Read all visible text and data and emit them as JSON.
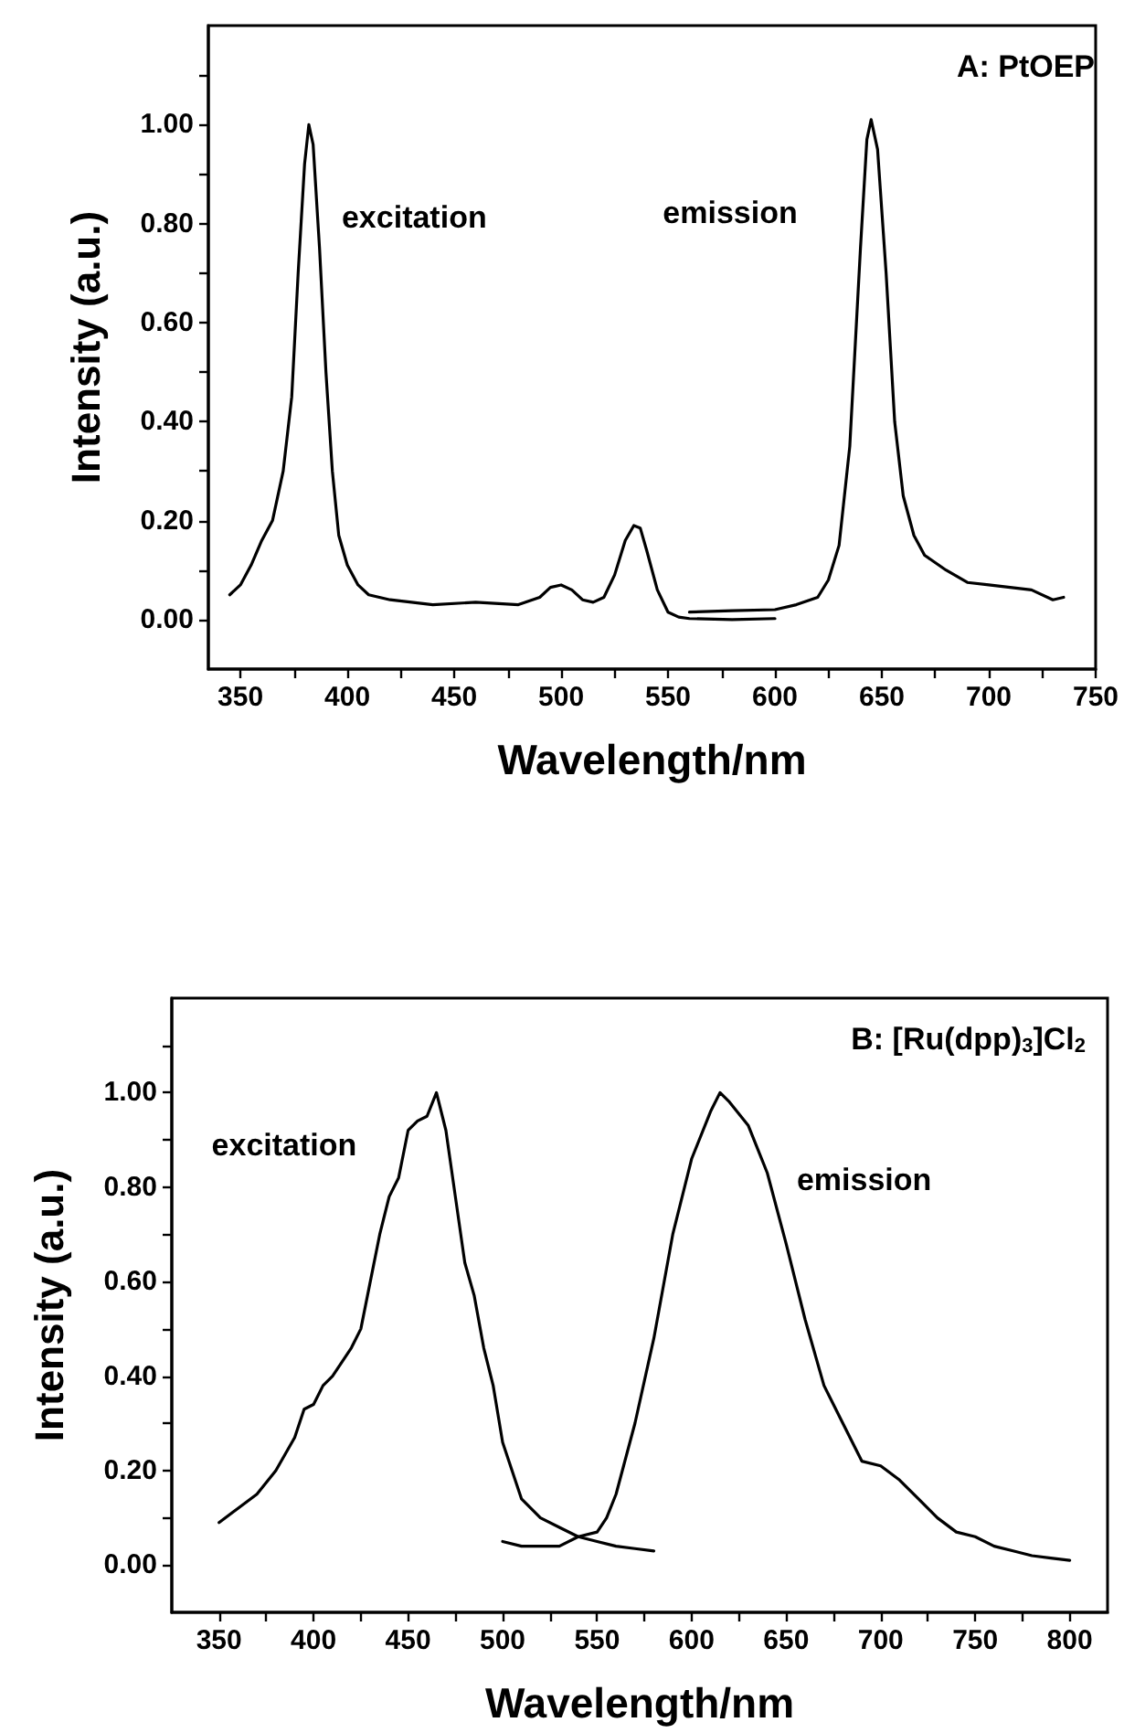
{
  "chart_data": [
    {
      "type": "line",
      "title": "A: PtOEP",
      "xlabel": "Wavelength/nm",
      "ylabel": "Intensity (a.u.)",
      "xlim": [
        335,
        750
      ],
      "ylim": [
        -0.1,
        1.2
      ],
      "xticks": [
        350,
        {
          "value": 375,
          "label": null
        },
        400,
        {
          "value": 425,
          "label": null
        },
        450,
        {
          "value": 475,
          "label": null
        },
        500,
        {
          "value": 525,
          "label": null
        },
        550,
        {
          "value": 575,
          "label": null
        },
        600,
        {
          "value": 625,
          "label": null
        },
        650,
        {
          "value": 675,
          "label": null
        },
        700,
        {
          "value": 725,
          "label": null
        },
        750
      ],
      "yticks": [
        {
          "value": 0,
          "label": "0.00"
        },
        {
          "value": 0.1,
          "label": null
        },
        {
          "value": 0.2,
          "label": "0.20"
        },
        {
          "value": 0.3,
          "label": null
        },
        {
          "value": 0.4,
          "label": "0.40"
        },
        {
          "value": 0.5,
          "label": null
        },
        {
          "value": 0.6,
          "label": "0.60"
        },
        {
          "value": 0.7,
          "label": null
        },
        {
          "value": 0.8,
          "label": "0.80"
        },
        {
          "value": 0.9,
          "label": null
        },
        {
          "value": 1,
          "label": "1.00"
        },
        {
          "value": 1.1,
          "label": null
        }
      ],
      "grid": false,
      "legend": false,
      "marker": "none",
      "line_style": "solid",
      "series": [
        {
          "name": "excitation",
          "color": "#000000",
          "x": [
            345,
            350,
            355,
            360,
            365,
            370,
            374,
            377,
            380,
            382,
            384,
            387,
            390,
            393,
            396,
            400,
            405,
            410,
            420,
            440,
            460,
            480,
            490,
            495,
            500,
            505,
            510,
            515,
            520,
            525,
            530,
            534,
            537,
            540,
            545,
            550,
            555,
            560,
            580,
            600
          ],
          "values": [
            0.05,
            0.07,
            0.11,
            0.16,
            0.2,
            0.3,
            0.45,
            0.7,
            0.92,
            1.0,
            0.96,
            0.75,
            0.5,
            0.3,
            0.17,
            0.11,
            0.07,
            0.05,
            0.04,
            0.03,
            0.035,
            0.03,
            0.045,
            0.065,
            0.07,
            0.06,
            0.04,
            0.035,
            0.045,
            0.09,
            0.16,
            0.19,
            0.185,
            0.14,
            0.06,
            0.015,
            0.005,
            0.002,
            0.0,
            0.002
          ]
        },
        {
          "name": "emission",
          "color": "#000000",
          "x": [
            560,
            580,
            600,
            610,
            620,
            625,
            630,
            635,
            640,
            643,
            645,
            648,
            652,
            656,
            660,
            665,
            670,
            680,
            690,
            700,
            710,
            720,
            730,
            735
          ],
          "values": [
            0.015,
            0.018,
            0.02,
            0.03,
            0.045,
            0.08,
            0.15,
            0.35,
            0.75,
            0.97,
            1.01,
            0.95,
            0.7,
            0.4,
            0.25,
            0.17,
            0.13,
            0.1,
            0.075,
            0.07,
            0.065,
            0.06,
            0.04,
            0.045
          ]
        }
      ]
    },
    {
      "type": "line",
      "title": "B: [Ru(dpp)$_{3}$]Cl$_{2}$",
      "xlabel": "Wavelength/nm",
      "ylabel": "Intensity (a.u.)",
      "xlim": [
        325,
        820
      ],
      "ylim": [
        -0.1,
        1.2
      ],
      "xticks": [
        350,
        {
          "value": 375,
          "label": null
        },
        400,
        {
          "value": 425,
          "label": null
        },
        450,
        {
          "value": 475,
          "label": null
        },
        500,
        {
          "value": 525,
          "label": null
        },
        550,
        {
          "value": 575,
          "label": null
        },
        600,
        {
          "value": 625,
          "label": null
        },
        650,
        {
          "value": 675,
          "label": null
        },
        700,
        {
          "value": 725,
          "label": null
        },
        750,
        {
          "value": 775,
          "label": null
        },
        800
      ],
      "yticks": [
        {
          "value": 0,
          "label": "0.00"
        },
        {
          "value": 0.1,
          "label": null
        },
        {
          "value": 0.2,
          "label": "0.20"
        },
        {
          "value": 0.3,
          "label": null
        },
        {
          "value": 0.4,
          "label": "0.40"
        },
        {
          "value": 0.5,
          "label": null
        },
        {
          "value": 0.6,
          "label": "0.60"
        },
        {
          "value": 0.7,
          "label": null
        },
        {
          "value": 0.8,
          "label": "0.80"
        },
        {
          "value": 0.9,
          "label": null
        },
        {
          "value": 1,
          "label": "1.00"
        },
        {
          "value": 1.1,
          "label": null
        }
      ],
      "grid": false,
      "legend": false,
      "marker": "none",
      "line_style": "solid",
      "series": [
        {
          "name": "excitation",
          "color": "#000000",
          "x": [
            350,
            360,
            370,
            380,
            390,
            395,
            400,
            405,
            410,
            420,
            425,
            430,
            435,
            440,
            445,
            450,
            455,
            460,
            465,
            470,
            475,
            480,
            485,
            490,
            495,
            500,
            505,
            510,
            520,
            530,
            540,
            550,
            560,
            570,
            580
          ],
          "values": [
            0.09,
            0.12,
            0.15,
            0.2,
            0.27,
            0.33,
            0.34,
            0.38,
            0.4,
            0.46,
            0.5,
            0.6,
            0.7,
            0.78,
            0.82,
            0.92,
            0.94,
            0.95,
            1.0,
            0.92,
            0.78,
            0.64,
            0.57,
            0.46,
            0.38,
            0.26,
            0.2,
            0.14,
            0.1,
            0.08,
            0.06,
            0.05,
            0.04,
            0.035,
            0.03
          ]
        },
        {
          "name": "emission",
          "color": "#000000",
          "x": [
            500,
            510,
            520,
            530,
            540,
            550,
            555,
            560,
            570,
            580,
            590,
            600,
            610,
            615,
            620,
            630,
            640,
            650,
            660,
            670,
            680,
            690,
            700,
            710,
            720,
            730,
            740,
            750,
            760,
            770,
            780,
            790,
            800
          ],
          "values": [
            0.05,
            0.04,
            0.04,
            0.04,
            0.06,
            0.07,
            0.1,
            0.15,
            0.3,
            0.48,
            0.7,
            0.86,
            0.96,
            1.0,
            0.98,
            0.93,
            0.83,
            0.68,
            0.52,
            0.38,
            0.3,
            0.22,
            0.21,
            0.18,
            0.14,
            0.1,
            0.07,
            0.06,
            0.04,
            0.03,
            0.02,
            0.015,
            0.01
          ]
        }
      ]
    }
  ]
}
